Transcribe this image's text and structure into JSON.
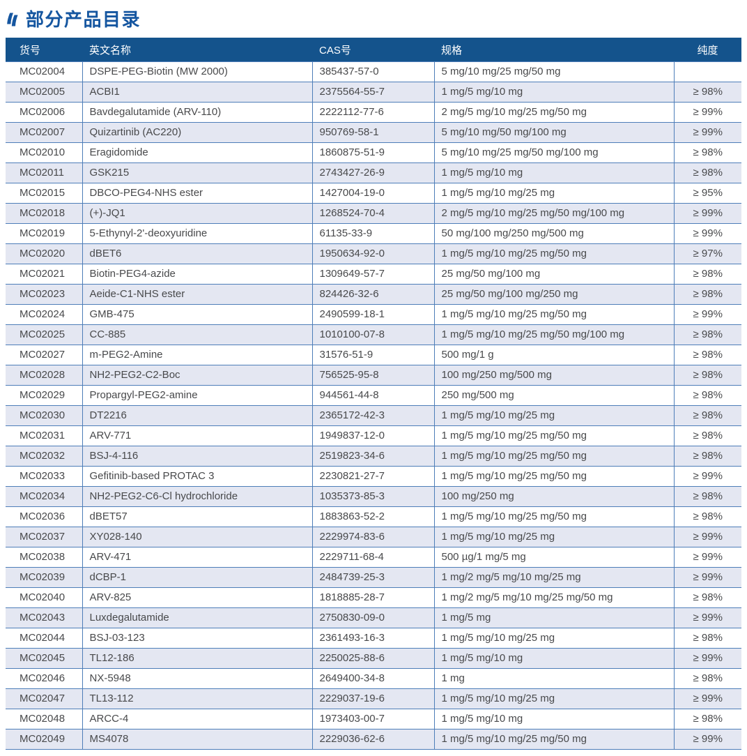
{
  "page": {
    "title": "部分产品目录"
  },
  "colors": {
    "accent": "#1556a0",
    "header-bg": "#14538c",
    "border": "#4d7db8",
    "stripe": "#e4e7f2",
    "text": "#48494b"
  },
  "table": {
    "columns": [
      {
        "key": "sku",
        "label": "货号"
      },
      {
        "key": "name",
        "label": "英文名称"
      },
      {
        "key": "cas",
        "label": "CAS号"
      },
      {
        "key": "spec",
        "label": "规格"
      },
      {
        "key": "purity",
        "label": "纯度"
      }
    ],
    "rows": [
      [
        "MC02004",
        "DSPE-PEG-Biotin (MW 2000)",
        "385437-57-0",
        "5 mg/10 mg/25 mg/50 mg",
        ""
      ],
      [
        "MC02005",
        "ACBI1",
        "2375564-55-7",
        "1 mg/5 mg/10 mg",
        "≥ 98%"
      ],
      [
        "MC02006",
        "Bavdegalutamide (ARV-110)",
        "2222112-77-6",
        "2 mg/5 mg/10 mg/25 mg/50 mg",
        "≥ 99%"
      ],
      [
        "MC02007",
        "Quizartinib (AC220)",
        "950769-58-1",
        "5 mg/10 mg/50 mg/100 mg",
        "≥ 99%"
      ],
      [
        "MC02010",
        "Eragidomide",
        "1860875-51-9",
        "5 mg/10 mg/25 mg/50 mg/100 mg",
        "≥ 98%"
      ],
      [
        "MC02011",
        "GSK215",
        "2743427-26-9",
        "1 mg/5 mg/10 mg",
        "≥ 98%"
      ],
      [
        "MC02015",
        "DBCO-PEG4-NHS ester",
        "1427004-19-0",
        "1 mg/5 mg/10 mg/25 mg",
        "≥ 95%"
      ],
      [
        "MC02018",
        "(+)-JQ1",
        "1268524-70-4",
        "2 mg/5 mg/10 mg/25 mg/50 mg/100 mg",
        "≥ 99%"
      ],
      [
        "MC02019",
        "5-Ethynyl-2'-deoxyuridine",
        "61135-33-9",
        "50 mg/100 mg/250 mg/500 mg",
        "≥ 99%"
      ],
      [
        "MC02020",
        "dBET6",
        "1950634-92-0",
        "1 mg/5 mg/10 mg/25 mg/50 mg",
        "≥ 97%"
      ],
      [
        "MC02021",
        "Biotin-PEG4-azide",
        "1309649-57-7",
        "25 mg/50 mg/100 mg",
        "≥ 98%"
      ],
      [
        "MC02023",
        "Aeide-C1-NHS ester",
        "824426-32-6",
        "25 mg/50 mg/100 mg/250 mg",
        "≥ 98%"
      ],
      [
        "MC02024",
        "GMB-475",
        "2490599-18-1",
        "1 mg/5 mg/10 mg/25 mg/50 mg",
        "≥ 99%"
      ],
      [
        "MC02025",
        "CC-885",
        "1010100-07-8",
        "1 mg/5 mg/10 mg/25 mg/50 mg/100 mg",
        "≥ 98%"
      ],
      [
        "MC02027",
        "m-PEG2-Amine",
        "31576-51-9",
        "500 mg/1 g",
        "≥ 98%"
      ],
      [
        "MC02028",
        "NH2-PEG2-C2-Boc",
        "756525-95-8",
        "100 mg/250 mg/500 mg",
        "≥ 98%"
      ],
      [
        "MC02029",
        "Propargyl-PEG2-amine",
        "944561-44-8",
        "250 mg/500 mg",
        "≥ 98%"
      ],
      [
        "MC02030",
        "DT2216",
        "2365172-42-3",
        "1 mg/5 mg/10 mg/25 mg",
        "≥ 98%"
      ],
      [
        "MC02031",
        "ARV-771",
        "1949837-12-0",
        "1 mg/5 mg/10 mg/25 mg/50 mg",
        "≥ 98%"
      ],
      [
        "MC02032",
        "BSJ-4-116",
        "2519823-34-6",
        "1 mg/5 mg/10 mg/25 mg/50 mg",
        "≥ 98%"
      ],
      [
        "MC02033",
        "Gefitinib-based PROTAC 3",
        "2230821-27-7",
        "1 mg/5 mg/10 mg/25 mg/50 mg",
        "≥ 99%"
      ],
      [
        "MC02034",
        "NH2-PEG2-C6-Cl hydrochloride",
        "1035373-85-3",
        "100 mg/250 mg",
        "≥ 98%"
      ],
      [
        "MC02036",
        "dBET57",
        "1883863-52-2",
        "1 mg/5 mg/10 mg/25 mg/50 mg",
        "≥ 98%"
      ],
      [
        "MC02037",
        "XY028-140",
        "2229974-83-6",
        "1 mg/5 mg/10 mg/25 mg",
        "≥ 99%"
      ],
      [
        "MC02038",
        "ARV-471",
        "2229711-68-4",
        "500 µg/1 mg/5 mg",
        "≥ 99%"
      ],
      [
        "MC02039",
        "dCBP-1",
        "2484739-25-3",
        "1 mg/2 mg/5 mg/10 mg/25 mg",
        "≥ 99%"
      ],
      [
        "MC02040",
        "ARV-825",
        "1818885-28-7",
        "1 mg/2 mg/5 mg/10 mg/25 mg/50 mg",
        "≥ 98%"
      ],
      [
        "MC02043",
        "Luxdegalutamide",
        "2750830-09-0",
        "1 mg/5 mg",
        "≥ 99%"
      ],
      [
        "MC02044",
        "BSJ-03-123",
        "2361493-16-3",
        "1 mg/5 mg/10 mg/25 mg",
        "≥ 98%"
      ],
      [
        "MC02045",
        "TL12-186",
        "2250025-88-6",
        "1 mg/5 mg/10 mg",
        "≥ 99%"
      ],
      [
        "MC02046",
        "NX-5948",
        "2649400-34-8",
        "1 mg",
        "≥ 98%"
      ],
      [
        "MC02047",
        "TL13-112",
        "2229037-19-6",
        "1 mg/5 mg/10 mg/25 mg",
        "≥ 99%"
      ],
      [
        "MC02048",
        "ARCC-4",
        "1973403-00-7",
        "1 mg/5 mg/10 mg",
        "≥ 98%"
      ],
      [
        "MC02049",
        "MS4078",
        "2229036-62-6",
        "1 mg/5 mg/10 mg/25 mg/50 mg",
        "≥ 99%"
      ]
    ]
  }
}
